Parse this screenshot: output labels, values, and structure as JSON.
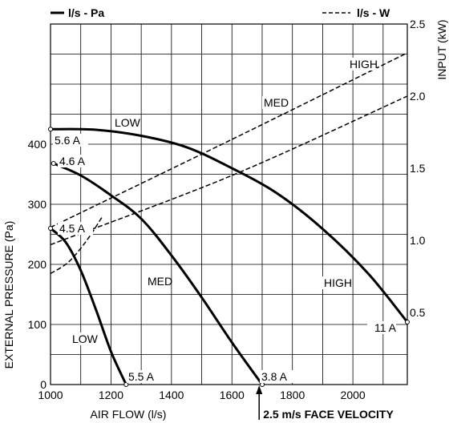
{
  "chart_data": {
    "type": "line",
    "legend": {
      "solid_label": "l/s - Pa",
      "dashed_label": "l/s - W"
    },
    "xlabel": "AIR FLOW (l/s)",
    "ylabel": "EXTERNAL PRESSURE (Pa)",
    "y2label": "INPUT (kW)",
    "xlim": [
      1000,
      2180
    ],
    "ylim": [
      0,
      600
    ],
    "y2lim": [
      0,
      2.5
    ],
    "grid": true,
    "x_ticks": [
      "1000",
      "1200",
      "1400",
      "1600",
      "1800",
      "2000"
    ],
    "y_ticks": [
      "0",
      "100",
      "200",
      "300",
      "400"
    ],
    "y2_ticks": [
      "0.5",
      "1.0",
      "1.5",
      "2.0",
      "2.5"
    ],
    "pressure_series": [
      {
        "name": "LOW",
        "start_label": "4.5 A",
        "end_label": "5.5 A",
        "x": [
          1000,
          1050,
          1100,
          1150,
          1200,
          1250
        ],
        "y": [
          260,
          237,
          190,
          125,
          55,
          0
        ]
      },
      {
        "name": "MED",
        "start_label": "4.6 A",
        "end_label": "3.8 A",
        "x": [
          1010,
          1100,
          1200,
          1300,
          1400,
          1500,
          1600,
          1700
        ],
        "y": [
          368,
          348,
          315,
          276,
          215,
          145,
          70,
          0
        ]
      },
      {
        "name": "HIGH",
        "start_label": "5.6 A",
        "end_label": "11 A",
        "x": [
          1000,
          1150,
          1300,
          1450,
          1600,
          1750,
          1900,
          2050,
          2180
        ],
        "y": [
          425,
          424,
          414,
          395,
          360,
          318,
          259,
          185,
          104
        ]
      }
    ],
    "input_series": [
      {
        "name": "LOW",
        "x": [
          1000,
          1060,
          1120,
          1170
        ],
        "y": [
          0.77,
          0.85,
          1.0,
          1.16
        ]
      },
      {
        "name": "MED",
        "x": [
          1000,
          1600,
          2180
        ],
        "y": [
          0.97,
          1.45,
          2.0
        ]
      },
      {
        "name": "HIGH",
        "x": [
          1000,
          1600,
          2180
        ],
        "y": [
          1.09,
          1.7,
          2.3
        ]
      }
    ],
    "input_labels": [
      "LOW",
      "MED",
      "HIGH"
    ],
    "face_velocity": {
      "x": 1690,
      "label": "2.5 m/s FACE VELOCITY"
    }
  }
}
